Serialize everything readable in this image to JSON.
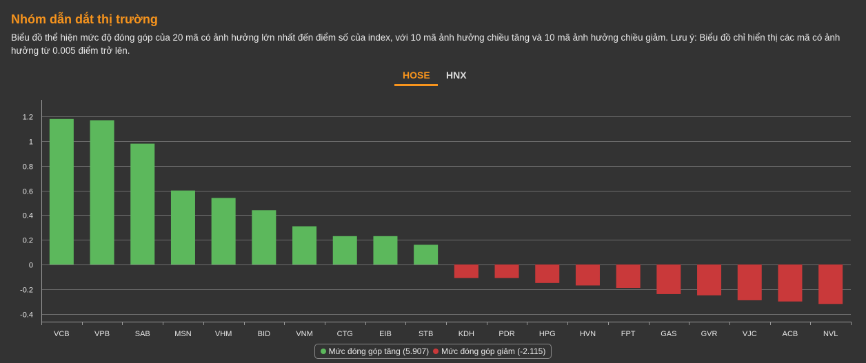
{
  "header": {
    "title": "Nhóm dẫn dắt thị trường",
    "description": "Biểu đồ thể hiện mức độ đóng góp của 20 mã có ảnh hưởng lớn nhất đến điểm số của index, với 10 mã ảnh hưởng chiều tăng và 10 mã ảnh hưởng chiều giảm. Lưu ý: Biểu đồ chỉ hiển thị các mã có ảnh hưởng từ 0.005 điểm trở lên."
  },
  "tabs": [
    {
      "label": "HOSE",
      "active": true
    },
    {
      "label": "HNX",
      "active": false
    }
  ],
  "legend": {
    "up_label": "Mức đóng góp tăng (5.907)",
    "down_label": "Mức đóng góp giảm (-2.115)"
  },
  "colors": {
    "up": "#5cb85c",
    "down": "#c9393a",
    "accent": "#f7941d"
  },
  "chart_data": {
    "type": "bar",
    "categories": [
      "VCB",
      "VPB",
      "SAB",
      "MSN",
      "VHM",
      "BID",
      "VNM",
      "CTG",
      "EIB",
      "STB",
      "KDH",
      "PDR",
      "HPG",
      "HVN",
      "FPT",
      "GAS",
      "GVR",
      "VJC",
      "ACB",
      "NVL"
    ],
    "values": [
      1.18,
      1.17,
      0.98,
      0.6,
      0.54,
      0.44,
      0.31,
      0.23,
      0.23,
      0.16,
      -0.11,
      -0.11,
      -0.15,
      -0.17,
      -0.19,
      -0.24,
      -0.25,
      -0.29,
      -0.3,
      -0.32
    ],
    "ylim": [
      -0.45,
      1.35
    ],
    "yticks": [
      -0.4,
      -0.2,
      0,
      0.2,
      0.4,
      0.6,
      0.8,
      1,
      1.2
    ],
    "ytick_labels": [
      "-0.4",
      "-0.2",
      "0",
      "0.2",
      "0.4",
      "0.6",
      "0.8",
      "1",
      "1.2"
    ],
    "grid": true,
    "legend_position": "bottom"
  }
}
